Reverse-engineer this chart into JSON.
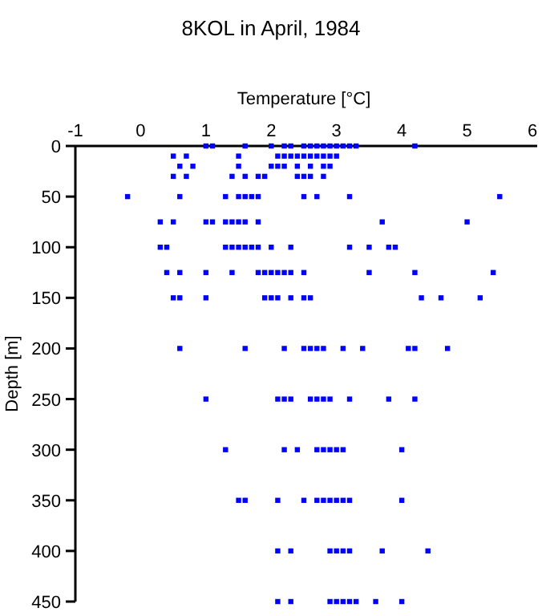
{
  "chart_data": {
    "type": "scatter",
    "title": "8KOL in April, 1984",
    "xlabel": "Temperature [°C]",
    "ylabel": "Depth [m]",
    "marker": "square",
    "grid": false,
    "xlim": [
      -1,
      6
    ],
    "xticks": [
      -1,
      0,
      1,
      2,
      3,
      4,
      5,
      6
    ],
    "ylim": [
      450,
      0
    ],
    "yticks": [
      0,
      50,
      100,
      150,
      200,
      250,
      300,
      350,
      400,
      450
    ],
    "series": [
      {
        "color": "#0000ff",
        "x": [
          1.0,
          1.1,
          1.6,
          2.0,
          2.2,
          2.3,
          2.5,
          2.6,
          2.7,
          2.8,
          2.9,
          3.0,
          3.1,
          3.2,
          3.3,
          4.2,
          0.5,
          0.7,
          1.5,
          2.1,
          2.2,
          2.3,
          2.4,
          2.5,
          2.6,
          2.7,
          2.8,
          2.9,
          3.0,
          0.6,
          0.8,
          1.5,
          2.0,
          2.1,
          2.2,
          2.4,
          2.6,
          2.8,
          2.9,
          0.5,
          0.7,
          1.4,
          1.6,
          1.8,
          1.9,
          2.4,
          2.5,
          2.6,
          2.8,
          -0.2,
          0.6,
          1.3,
          1.5,
          1.6,
          1.7,
          1.8,
          2.5,
          2.7,
          3.2,
          5.5,
          0.3,
          0.5,
          1.0,
          1.1,
          1.3,
          1.4,
          1.5,
          1.6,
          1.8,
          3.7,
          5.0,
          0.3,
          0.4,
          1.3,
          1.4,
          1.5,
          1.6,
          1.7,
          1.8,
          2.0,
          2.3,
          3.2,
          3.5,
          3.8,
          3.9,
          0.4,
          0.6,
          1.0,
          1.4,
          1.8,
          1.9,
          2.0,
          2.1,
          2.2,
          2.3,
          2.5,
          3.5,
          4.2,
          5.4,
          0.5,
          0.6,
          1.0,
          1.9,
          2.0,
          2.1,
          2.3,
          2.5,
          2.6,
          4.3,
          4.6,
          5.2,
          0.6,
          1.6,
          2.2,
          2.5,
          2.6,
          2.7,
          2.8,
          3.1,
          3.4,
          4.1,
          4.2,
          4.7,
          1.0,
          2.1,
          2.2,
          2.3,
          2.6,
          2.7,
          2.8,
          2.9,
          3.2,
          3.8,
          4.2,
          1.3,
          2.2,
          2.4,
          2.7,
          2.8,
          2.9,
          3.0,
          3.1,
          4.0,
          1.5,
          1.6,
          2.1,
          2.5,
          2.7,
          2.8,
          2.9,
          3.0,
          3.1,
          3.2,
          4.0,
          2.1,
          2.3,
          2.9,
          3.0,
          3.1,
          3.2,
          3.7,
          4.4,
          2.1,
          2.3,
          2.9,
          3.0,
          3.1,
          3.2,
          3.3,
          3.6,
          4.0
        ],
        "values": [
          0,
          0,
          0,
          0,
          0,
          0,
          0,
          0,
          0,
          0,
          0,
          0,
          0,
          0,
          0,
          0,
          10,
          10,
          10,
          10,
          10,
          10,
          10,
          10,
          10,
          10,
          10,
          10,
          10,
          20,
          20,
          20,
          20,
          20,
          20,
          20,
          20,
          20,
          20,
          30,
          30,
          30,
          30,
          30,
          30,
          30,
          30,
          30,
          30,
          50,
          50,
          50,
          50,
          50,
          50,
          50,
          50,
          50,
          50,
          50,
          75,
          75,
          75,
          75,
          75,
          75,
          75,
          75,
          75,
          75,
          75,
          100,
          100,
          100,
          100,
          100,
          100,
          100,
          100,
          100,
          100,
          100,
          100,
          100,
          100,
          125,
          125,
          125,
          125,
          125,
          125,
          125,
          125,
          125,
          125,
          125,
          125,
          125,
          125,
          150,
          150,
          150,
          150,
          150,
          150,
          150,
          150,
          150,
          150,
          150,
          150,
          200,
          200,
          200,
          200,
          200,
          200,
          200,
          200,
          200,
          200,
          200,
          200,
          250,
          250,
          250,
          250,
          250,
          250,
          250,
          250,
          250,
          250,
          250,
          300,
          300,
          300,
          300,
          300,
          300,
          300,
          300,
          300,
          350,
          350,
          350,
          350,
          350,
          350,
          350,
          350,
          350,
          350,
          350,
          400,
          400,
          400,
          400,
          400,
          400,
          400,
          400,
          450,
          450,
          450,
          450,
          450,
          450,
          450,
          450,
          450
        ]
      }
    ]
  }
}
